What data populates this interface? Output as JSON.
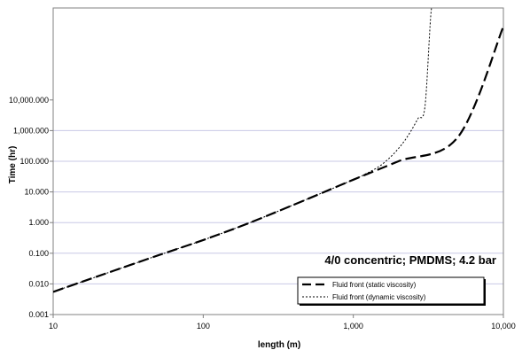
{
  "chart_data": {
    "type": "line",
    "xlabel": "length (m)",
    "ylabel": "Time (hr)",
    "x_scale": "log",
    "y_scale": "log",
    "xlim": [
      10,
      10000
    ],
    "ylim": [
      0.001,
      10000000
    ],
    "x_ticks": [
      "10",
      "100",
      "1,000",
      "10,000"
    ],
    "y_ticks": [
      "0.001",
      "0.010",
      "0.100",
      "1.000",
      "10.000",
      "100.000",
      "1,000.000",
      "10,000.000"
    ],
    "grid": "horizontal",
    "annotation": "4/0 concentric; PMDMS; 4.2 bar",
    "legend_position": "bottom-right",
    "series": [
      {
        "name": "Fluid front (static viscosity)",
        "style": "long-dash",
        "color": "#000000",
        "x": [
          10,
          20,
          50,
          100,
          200,
          500,
          1000,
          2000,
          5000,
          10000
        ],
        "y": [
          0.0055,
          0.018,
          0.085,
          0.27,
          0.95,
          6.0,
          25,
          100,
          630,
          2500000
        ]
      },
      {
        "name": "Fluid front (dynamic viscosity)",
        "style": "short-dash",
        "color": "#000000",
        "x": [
          10,
          20,
          50,
          100,
          200,
          500,
          1000,
          1200,
          1500,
          1800,
          2100,
          2400,
          2700,
          3000,
          3300,
          3500
        ],
        "y": [
          0.0055,
          0.018,
          0.085,
          0.27,
          0.95,
          6.0,
          25,
          38,
          70,
          150,
          350,
          900,
          2500,
          6000,
          8000000,
          10000000
        ]
      }
    ]
  }
}
